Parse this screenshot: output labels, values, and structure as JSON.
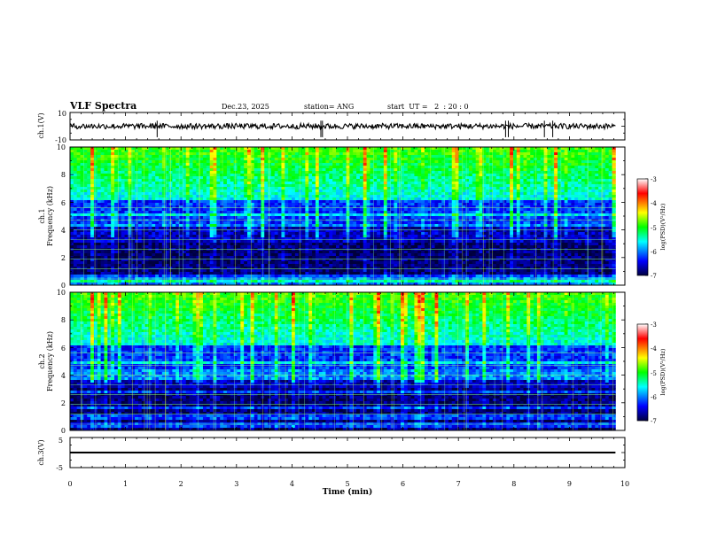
{
  "header": {
    "title": "VLF Spectra",
    "date": "Dec.23, 2025",
    "station": "station= ANG",
    "start": "start  UT =   2  : 20 : 0"
  },
  "colorbar": {
    "label": "log(PSD)(V²/Hz)",
    "ticks": [
      "-3",
      "-4",
      "-5",
      "-6",
      "-7"
    ],
    "colors": [
      "#ffffff",
      "#ff0000",
      "#ffff00",
      "#00ff00",
      "#00ffff",
      "#0000ff",
      "#000040"
    ]
  },
  "chart_data": [
    {
      "type": "line",
      "name": "waveform-ch1",
      "ylabel": "ch.1(V)",
      "ylim": [
        -10,
        10
      ],
      "ytick_labels": [
        "10",
        "-10"
      ],
      "xlim": [
        0,
        10
      ],
      "baseline": 0,
      "noise_band": [
        -2,
        2
      ],
      "spikes_min": [
        1.57,
        4.52,
        4.55,
        7.85,
        7.9,
        8.55,
        8.7
      ]
    },
    {
      "type": "heatmap",
      "name": "spectrogram-ch1",
      "ylabel_top": "ch.1",
      "ylabel": "Frequency (kHz)",
      "ylim": [
        0,
        10
      ],
      "ytick_labels": [
        "0",
        "2",
        "4",
        "6",
        "8",
        "10"
      ],
      "xlim": [
        0,
        10
      ],
      "data_end_min": 9.83,
      "zlim": [
        -7,
        -3
      ]
    },
    {
      "type": "heatmap",
      "name": "spectrogram-ch2",
      "ylabel_top": "ch.2",
      "ylabel": "Frequency (kHz)",
      "ylim": [
        0,
        10
      ],
      "ytick_labels": [
        "0",
        "2",
        "4",
        "6",
        "8",
        "10"
      ],
      "xlim": [
        0,
        10
      ],
      "data_end_min": 9.83,
      "zlim": [
        -7,
        -3
      ]
    },
    {
      "type": "line",
      "name": "waveform-ch3",
      "ylabel": "ch.3(V)",
      "ylim": [
        -5,
        5
      ],
      "ytick_labels": [
        "5",
        "-5"
      ],
      "xlim": [
        0,
        10
      ],
      "baseline": 0,
      "noise_band": [
        -0.3,
        0.3
      ]
    }
  ],
  "xaxis": {
    "label": "Time (min)",
    "ticks": [
      "0",
      "1",
      "2",
      "3",
      "4",
      "5",
      "6",
      "7",
      "8",
      "9",
      "10"
    ]
  }
}
